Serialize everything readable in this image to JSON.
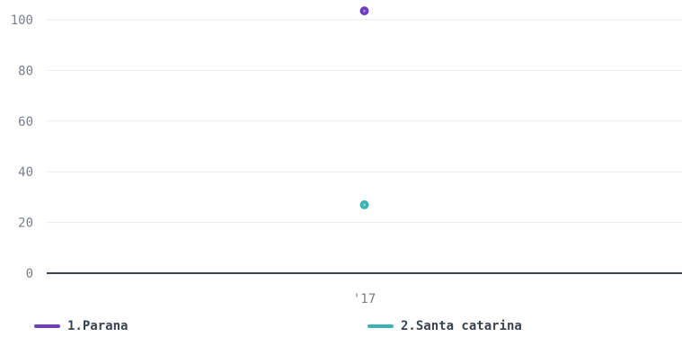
{
  "chart_data": {
    "type": "scatter",
    "categories": [
      "'17"
    ],
    "yticks": [
      0,
      20,
      40,
      60,
      80,
      100
    ],
    "ylim": [
      0,
      105
    ],
    "series": [
      {
        "name": "1.Parana",
        "values": [
          103.5
        ],
        "color": "#6f3fbf"
      },
      {
        "name": "2.Santa catarina",
        "values": [
          27
        ],
        "color": "#3bb3b3"
      }
    ],
    "legend_position": "bottom"
  }
}
